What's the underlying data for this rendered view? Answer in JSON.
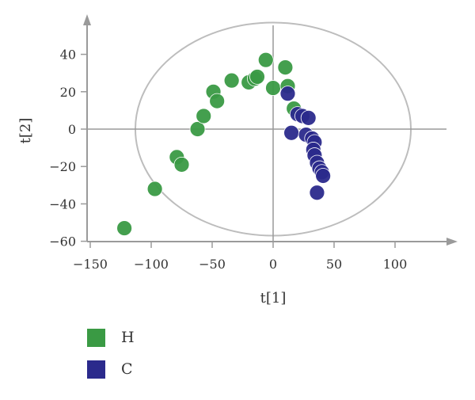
{
  "chart_data": {
    "type": "scatter",
    "xlabel": "t[1]",
    "ylabel": "t[2]",
    "xlim": [
      -150,
      150
    ],
    "ylim": [
      -60,
      55
    ],
    "x_ticks": [
      -150,
      -100,
      -50,
      0,
      50,
      100
    ],
    "y_ticks": [
      -60,
      -40,
      -20,
      0,
      20,
      40
    ],
    "grid": false,
    "legend_position": "bottom-left",
    "ellipse": {
      "center": [
        0,
        0
      ],
      "rx": 113,
      "ry": 57
    },
    "series": [
      {
        "name": "H",
        "color": "#3a9a44",
        "points": [
          [
            -122,
            -53
          ],
          [
            -97,
            -32
          ],
          [
            -79,
            -15
          ],
          [
            -75,
            -19
          ],
          [
            -62,
            0
          ],
          [
            -57,
            7
          ],
          [
            -49,
            20
          ],
          [
            -46,
            15
          ],
          [
            -34,
            26
          ],
          [
            -20,
            25
          ],
          [
            -15,
            27
          ],
          [
            -13,
            28
          ],
          [
            -6,
            37
          ],
          [
            0,
            22
          ],
          [
            10,
            33
          ],
          [
            12,
            23
          ],
          [
            17,
            11
          ]
        ]
      },
      {
        "name": "C",
        "color": "#2b2a8c",
        "points": [
          [
            12,
            19
          ],
          [
            15,
            -2
          ],
          [
            20,
            8
          ],
          [
            24,
            7
          ],
          [
            29,
            6
          ],
          [
            27,
            -3
          ],
          [
            32,
            -5
          ],
          [
            34,
            -7
          ],
          [
            33,
            -11
          ],
          [
            34,
            -14
          ],
          [
            36,
            -18
          ],
          [
            38,
            -21
          ],
          [
            40,
            -23
          ],
          [
            41,
            -25
          ],
          [
            36,
            -34
          ]
        ]
      }
    ]
  }
}
